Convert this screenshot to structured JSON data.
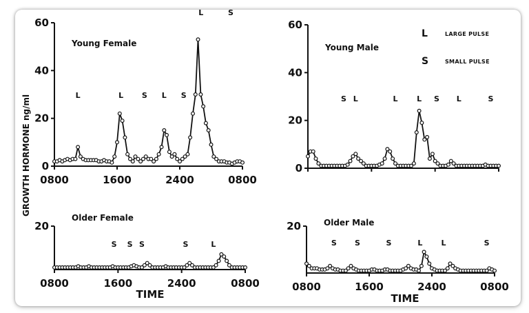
{
  "ylabel": "GROWTH    HORMONE  ng/ml",
  "xlabel": "TIME",
  "legend": [
    {
      "key": "L",
      "text": "LARGE PULSE"
    },
    {
      "key": "S",
      "text": "SMALL PULSE"
    }
  ],
  "chart_data": [
    {
      "type": "line",
      "title": "Young Female",
      "x_unit": "hours since 0800",
      "xticks": [
        "0800",
        "1600",
        "2400",
        "0800"
      ],
      "yticks": [
        "0",
        "20",
        "40",
        "60"
      ],
      "ylim": [
        0,
        60
      ],
      "x": [
        0,
        0.33,
        0.67,
        1,
        1.33,
        1.67,
        2,
        2.33,
        2.67,
        3,
        3.33,
        3.67,
        4,
        4.33,
        4.67,
        5,
        5.33,
        5.67,
        6,
        6.33,
        6.67,
        7,
        7.33,
        7.67,
        8,
        8.33,
        8.67,
        9,
        9.33,
        9.67,
        10,
        10.33,
        10.67,
        11,
        11.33,
        11.67,
        12,
        12.33,
        12.67,
        13,
        13.33,
        13.67,
        14,
        14.33,
        14.67,
        15,
        15.33,
        15.67,
        16,
        16.33,
        16.67,
        17,
        17.33,
        17.67,
        18,
        18.33,
        18.67,
        19,
        19.33,
        19.67,
        20,
        20.33,
        20.67,
        21,
        21.33,
        21.67,
        22,
        22.33,
        22.67,
        23,
        23.33,
        23.67,
        24
      ],
      "values": [
        2,
        2,
        2.5,
        2,
        2.5,
        3,
        2.5,
        3,
        3,
        8,
        4,
        3,
        2.5,
        2.5,
        2.5,
        2.5,
        2.5,
        2,
        2,
        2.5,
        2,
        2,
        1.5,
        4,
        10,
        22,
        19,
        12,
        5,
        3,
        2,
        4,
        3,
        2,
        3,
        4,
        3,
        3,
        2,
        3,
        5,
        8,
        15,
        13,
        6,
        4,
        5,
        3,
        2,
        3,
        4,
        5,
        12,
        22,
        30,
        53,
        30,
        25,
        18,
        15,
        9,
        4,
        3,
        2,
        2,
        2,
        1.5,
        1.5,
        1,
        1.5,
        2,
        2,
        1.5
      ],
      "annotations": [
        {
          "label": "L",
          "x": 3.0
        },
        {
          "label": "L",
          "x": 8.5
        },
        {
          "label": "S",
          "x": 11.5
        },
        {
          "label": "L",
          "x": 14.0
        },
        {
          "label": "S",
          "x": 16.5
        },
        {
          "label": "L",
          "x": 18.7
        },
        {
          "label": "S",
          "x": 22.5
        }
      ]
    },
    {
      "type": "line",
      "title": "Young Male",
      "x_unit": "hours since 0800",
      "xticks": [
        "0800",
        "1600",
        "2400",
        "0800"
      ],
      "yticks": [
        "0",
        "20",
        "40",
        "60"
      ],
      "ylim": [
        0,
        60
      ],
      "x": [
        0,
        0.33,
        0.67,
        1,
        1.33,
        1.67,
        2,
        2.33,
        2.67,
        3,
        3.33,
        3.67,
        4,
        4.33,
        4.67,
        5,
        5.33,
        5.67,
        6,
        6.33,
        6.67,
        7,
        7.33,
        7.67,
        8,
        8.33,
        8.67,
        9,
        9.33,
        9.67,
        10,
        10.33,
        10.67,
        11,
        11.33,
        11.67,
        12,
        12.33,
        12.67,
        13,
        13.33,
        13.67,
        14,
        14.33,
        14.67,
        15,
        15.33,
        15.67,
        16,
        16.33,
        16.67,
        17,
        17.33,
        17.67,
        18,
        18.33,
        18.67,
        19,
        19.33,
        19.67,
        20,
        20.33,
        20.67,
        21,
        21.33,
        21.67,
        22,
        22.33,
        22.67,
        23,
        23.33,
        23.67,
        24
      ],
      "values": [
        5,
        7,
        7,
        4,
        2,
        1,
        1,
        1,
        1,
        1,
        1,
        1,
        1,
        1,
        1,
        1.5,
        3,
        5,
        6,
        4,
        3,
        2,
        1,
        1,
        1,
        1,
        1,
        1.5,
        2,
        4,
        8,
        7,
        4,
        2,
        1,
        1,
        1,
        1,
        1,
        1,
        2,
        15,
        24,
        19,
        12,
        13,
        4,
        6,
        3,
        2,
        1,
        1,
        1,
        1.5,
        3,
        2,
        1,
        1,
        1,
        1,
        1,
        1,
        1,
        1,
        1,
        1,
        1,
        1.5,
        1,
        1,
        1,
        1,
        1
      ],
      "annotations": [
        {
          "label": "S",
          "x": 4.5
        },
        {
          "label": "L",
          "x": 6.0
        },
        {
          "label": "L",
          "x": 11.0
        },
        {
          "label": "L",
          "x": 14.0
        },
        {
          "label": "S",
          "x": 16.2
        },
        {
          "label": "L",
          "x": 19.0
        },
        {
          "label": "S",
          "x": 23.0
        }
      ]
    },
    {
      "type": "line",
      "title": "Older Female",
      "x_unit": "hours since 0800",
      "xticks": [
        "0800",
        "1600",
        "2400",
        "0800"
      ],
      "yticks": [
        "20"
      ],
      "ylim": [
        0,
        20
      ],
      "x": [
        0,
        0.33,
        0.67,
        1,
        1.33,
        1.67,
        2,
        2.33,
        2.67,
        3,
        3.33,
        3.67,
        4,
        4.33,
        4.67,
        5,
        5.33,
        5.67,
        6,
        6.33,
        6.67,
        7,
        7.33,
        7.67,
        8,
        8.33,
        8.67,
        9,
        9.33,
        9.67,
        10,
        10.33,
        10.67,
        11,
        11.33,
        11.67,
        12,
        12.33,
        12.67,
        13,
        13.33,
        13.67,
        14,
        14.33,
        14.67,
        15,
        15.33,
        15.67,
        16,
        16.33,
        16.67,
        17,
        17.33,
        17.67,
        18,
        18.33,
        18.67,
        19,
        19.33,
        19.67,
        20,
        20.33,
        20.67,
        21,
        21.33,
        21.67,
        22,
        22.33,
        22.67,
        23,
        23.33,
        23.67,
        24
      ],
      "values": [
        1,
        1,
        1,
        1,
        1,
        1,
        1,
        1,
        1,
        1.5,
        1,
        1,
        1,
        1.5,
        1,
        1,
        1,
        1,
        1,
        1,
        1,
        1,
        1.5,
        1,
        1,
        1,
        1,
        1,
        1,
        1.5,
        2,
        1.5,
        1,
        1,
        2,
        3,
        2,
        1,
        1,
        1,
        1,
        1,
        1.5,
        1,
        1,
        1,
        1,
        1,
        1,
        1,
        2,
        3,
        2,
        1,
        1,
        1,
        1,
        1,
        1,
        1,
        1,
        2,
        4,
        7,
        6,
        4,
        2,
        1,
        1,
        1,
        1,
        1,
        1
      ],
      "annotations": [
        {
          "label": "S",
          "x": 7.5
        },
        {
          "label": "S",
          "x": 9.5
        },
        {
          "label": "S",
          "x": 11.0
        },
        {
          "label": "S",
          "x": 16.5
        },
        {
          "label": "L",
          "x": 20.0
        }
      ]
    },
    {
      "type": "line",
      "title": "Older Male",
      "x_unit": "hours since 0800",
      "xticks": [
        "0800",
        "1600",
        "2400",
        "0800"
      ],
      "yticks": [
        "20"
      ],
      "ylim": [
        0,
        20
      ],
      "x": [
        0,
        0.33,
        0.67,
        1,
        1.33,
        1.67,
        2,
        2.33,
        2.67,
        3,
        3.33,
        3.67,
        4,
        4.33,
        4.67,
        5,
        5.33,
        5.67,
        6,
        6.33,
        6.67,
        7,
        7.33,
        7.67,
        8,
        8.33,
        8.67,
        9,
        9.33,
        9.67,
        10,
        10.33,
        10.67,
        11,
        11.33,
        11.67,
        12,
        12.33,
        12.67,
        13,
        13.33,
        13.67,
        14,
        14.33,
        14.67,
        15,
        15.33,
        15.67,
        16,
        16.33,
        16.67,
        17,
        17.33,
        17.67,
        18,
        18.33,
        18.67,
        19,
        19.33,
        19.67,
        20,
        20.33,
        20.67,
        21,
        21.33,
        21.67,
        22,
        22.33,
        22.67,
        23,
        23.33,
        23.67,
        24
      ],
      "values": [
        4,
        3,
        2,
        2,
        2,
        1.5,
        1.5,
        1.5,
        2,
        3,
        2,
        1.5,
        1.5,
        1,
        1,
        1,
        2,
        3,
        2,
        1.5,
        1,
        1,
        1,
        1,
        1,
        1.5,
        1.5,
        1,
        1,
        1,
        1.5,
        1.5,
        1,
        1,
        1,
        1,
        1,
        1.5,
        2,
        3,
        2,
        1.5,
        1.5,
        1,
        3,
        9,
        7,
        4,
        2,
        1.5,
        1,
        1,
        1,
        1,
        2,
        4,
        3,
        2,
        1.5,
        1,
        1,
        1,
        1,
        1,
        1,
        1,
        1,
        1,
        1,
        1,
        2,
        1.5,
        1
      ],
      "annotations": [
        {
          "label": "S",
          "x": 3.5
        },
        {
          "label": "S",
          "x": 6.5
        },
        {
          "label": "S",
          "x": 10.5
        },
        {
          "label": "L",
          "x": 14.5
        },
        {
          "label": "L",
          "x": 17.5
        },
        {
          "label": "S",
          "x": 23.0
        }
      ]
    }
  ]
}
